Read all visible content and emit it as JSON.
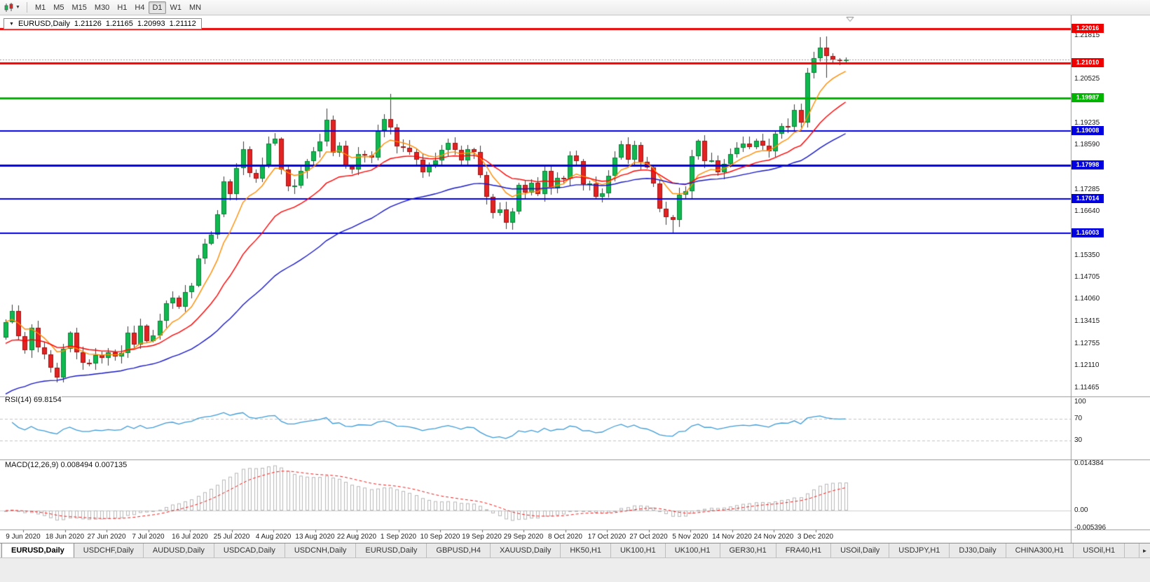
{
  "toolbar": {
    "timeframes": [
      "M1",
      "M5",
      "M15",
      "M30",
      "H1",
      "H4",
      "D1",
      "W1",
      "MN"
    ],
    "active_timeframe": "D1"
  },
  "chart": {
    "title": {
      "symbol_period": "EURUSD,Daily",
      "open": "1.21126",
      "high": "1.21165",
      "low": "1.20993",
      "close": "1.21112"
    }
  },
  "indicators": {
    "rsi": {
      "label": "RSI(14) 69.8154",
      "period": 14,
      "value": 69.8154,
      "axis": [
        {
          "label": "100",
          "value": 100
        },
        {
          "label": "70",
          "value": 70
        },
        {
          "label": "30",
          "value": 30
        }
      ]
    },
    "macd": {
      "label": "MACD(12,26,9) 0.008494 0.007135",
      "fast": 12,
      "slow": 26,
      "signal": 9,
      "value": 0.008494,
      "signal_value": 0.007135,
      "axis": [
        {
          "label": "0.014384",
          "value": 0.014384
        },
        {
          "label": "0.00",
          "value": 0
        },
        {
          "label": "-0.005396",
          "value": -0.005396
        }
      ]
    }
  },
  "chart_data": {
    "type": "candlestick",
    "symbol": "EURUSD",
    "timeframe": "Daily",
    "current_candle": {
      "open": 1.21126,
      "high": 1.21165,
      "low": 1.20993,
      "close": 1.21112
    },
    "bid": 1.21112,
    "price_range": {
      "top": 1.2216,
      "bottom": 1.1124
    },
    "price_axis_ticks": [
      "1.21815",
      "1.20525",
      "1.19235",
      "1.18590",
      "1.17285",
      "1.16640",
      "1.15350",
      "1.14705",
      "1.14060",
      "1.13415",
      "1.12755",
      "1.12110",
      "1.11465"
    ],
    "date_labels": [
      "9 Jun 2020",
      "18 Jun 2020",
      "27 Jun 2020",
      "7 Jul 2020",
      "16 Jul 2020",
      "25 Jul 2020",
      "4 Aug 2020",
      "13 Aug 2020",
      "22 Aug 2020",
      "1 Sep 2020",
      "10 Sep 2020",
      "19 Sep 2020",
      "29 Sep 2020",
      "8 Oct 2020",
      "17 Oct 2020",
      "27 Oct 2020",
      "5 Nov 2020",
      "14 Nov 2020",
      "24 Nov 2020",
      "3 Dec 2020"
    ],
    "first_open": 1.1293,
    "closes": [
      1.134,
      1.1373,
      1.1298,
      1.1256,
      1.1323,
      1.1264,
      1.1244,
      1.1205,
      1.1177,
      1.1261,
      1.1308,
      1.1251,
      1.1219,
      1.1218,
      1.1242,
      1.1234,
      1.1251,
      1.1239,
      1.1248,
      1.1309,
      1.1274,
      1.1329,
      1.1284,
      1.13,
      1.1343,
      1.1394,
      1.1411,
      1.1384,
      1.1427,
      1.1447,
      1.1526,
      1.157,
      1.1596,
      1.1656,
      1.1752,
      1.1716,
      1.1791,
      1.1847,
      1.1778,
      1.1762,
      1.1803,
      1.1864,
      1.1878,
      1.1787,
      1.1738,
      1.174,
      1.1784,
      1.1813,
      1.1842,
      1.1871,
      1.1934,
      1.1838,
      1.1858,
      1.1796,
      1.1787,
      1.1833,
      1.183,
      1.1823,
      1.1904,
      1.1936,
      1.1912,
      1.1855,
      1.1852,
      1.184,
      1.1816,
      1.178,
      1.1802,
      1.1815,
      1.1845,
      1.1867,
      1.1846,
      1.1815,
      1.1847,
      1.184,
      1.1772,
      1.1707,
      1.166,
      1.1671,
      1.1631,
      1.1665,
      1.1743,
      1.172,
      1.1748,
      1.1715,
      1.1784,
      1.1732,
      1.1763,
      1.1761,
      1.1828,
      1.1812,
      1.1745,
      1.1746,
      1.1708,
      1.1717,
      1.1769,
      1.1822,
      1.1862,
      1.1817,
      1.186,
      1.181,
      1.1794,
      1.1746,
      1.1673,
      1.1647,
      1.164,
      1.1714,
      1.1723,
      1.1827,
      1.1872,
      1.1813,
      1.1815,
      1.1779,
      1.1804,
      1.1833,
      1.1852,
      1.1863,
      1.1854,
      1.1873,
      1.1857,
      1.1842,
      1.1893,
      1.1916,
      1.1913,
      1.1963,
      1.1926,
      1.2071,
      1.2115,
      1.2145,
      1.2121,
      1.211,
      1.2106,
      1.21112
    ],
    "wick_overrides": {
      "50": {
        "high": 1.1966
      },
      "60": {
        "high": 1.2011
      },
      "78": {
        "low": 1.1612
      },
      "104": {
        "low": 1.1603
      },
      "127": {
        "high": 1.2177
      },
      "128": {
        "high": 1.2178,
        "low": 1.2058
      },
      "131": {
        "high": 1.21165,
        "low": 1.20993
      }
    },
    "horizontal_lines": [
      {
        "price": 1.22016,
        "label": "1.22016",
        "color": "#ee0000",
        "width": 3
      },
      {
        "price": 1.2101,
        "label": "1.21010",
        "color": "#ee0000",
        "width": 3
      },
      {
        "price": 1.19987,
        "label": "1.19987",
        "color": "#00b400",
        "width": 3
      },
      {
        "price": 1.19008,
        "label": "1.19008",
        "color": "#0000e0",
        "width": 2
      },
      {
        "price": 1.17998,
        "label": "1.17998",
        "color": "#0000e0",
        "width": 3
      },
      {
        "price": 1.17014,
        "label": "1.17014",
        "color": "#0000e0",
        "width": 2
      },
      {
        "price": 1.16003,
        "label": "1.16003",
        "color": "#0000e0",
        "width": 2
      }
    ],
    "moving_averages": [
      {
        "name": "ma-fast",
        "color": "#ff8c00",
        "period": 8,
        "seed": 1.134
      },
      {
        "name": "ma-mid",
        "color": "#ff0000",
        "period": 20,
        "seed": 1.127
      },
      {
        "name": "ma-slow",
        "color": "#1717c8",
        "period": 45,
        "seed": 1.1118
      }
    ],
    "rsi_levels": [
      70,
      30
    ],
    "macd_axis_values": [
      0.014384,
      0,
      -0.005396
    ]
  },
  "colors": {
    "candle_up": "#0fb94f",
    "candle_up_border": "#0a8038",
    "candle_down": "#e32222",
    "candle_down_border": "#9e1414",
    "wick": "#3a3a3a",
    "rsi_line": "#3e9bd6",
    "macd_signal": "#ee2222",
    "macd_hist": "#b8b8b8",
    "bid_line": "#9a9a9a",
    "separator": "#9a9a9a"
  },
  "tabs": [
    {
      "label": "EURUSD,Daily",
      "active": true
    },
    {
      "label": "USDCHF,Daily"
    },
    {
      "label": "AUDUSD,Daily"
    },
    {
      "label": "USDCAD,Daily"
    },
    {
      "label": "USDCNH,Daily"
    },
    {
      "label": "EURUSD,Daily"
    },
    {
      "label": "GBPUSD,H4"
    },
    {
      "label": "XAUUSD,Daily"
    },
    {
      "label": "HK50,H1"
    },
    {
      "label": "UK100,H1"
    },
    {
      "label": "UK100,H1"
    },
    {
      "label": "GER30,H1"
    },
    {
      "label": "FRA40,H1"
    },
    {
      "label": "USOil,Daily"
    },
    {
      "label": "USDJPY,H1"
    },
    {
      "label": "DJ30,Daily"
    },
    {
      "label": "CHINA300,H1"
    },
    {
      "label": "USOil,H1"
    }
  ],
  "tab_scroll_right_glyph": "►"
}
